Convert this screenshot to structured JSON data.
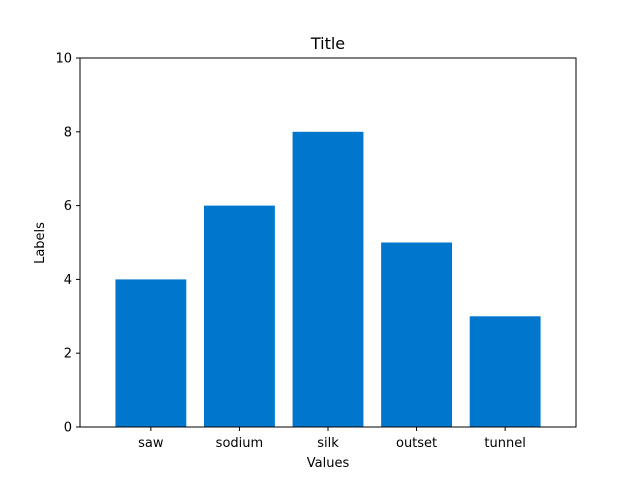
{
  "chart_data": {
    "type": "bar",
    "title": "Title",
    "xlabel": "Values",
    "ylabel": "Labels",
    "categories": [
      "saw",
      "sodium",
      "silk",
      "outset",
      "tunnel"
    ],
    "values": [
      4,
      6,
      8,
      5,
      3
    ],
    "ylim": [
      0,
      10
    ],
    "yticks": [
      0,
      2,
      4,
      6,
      8,
      10
    ],
    "bar_color": "#0077cc",
    "grid": false,
    "legend": "none"
  }
}
